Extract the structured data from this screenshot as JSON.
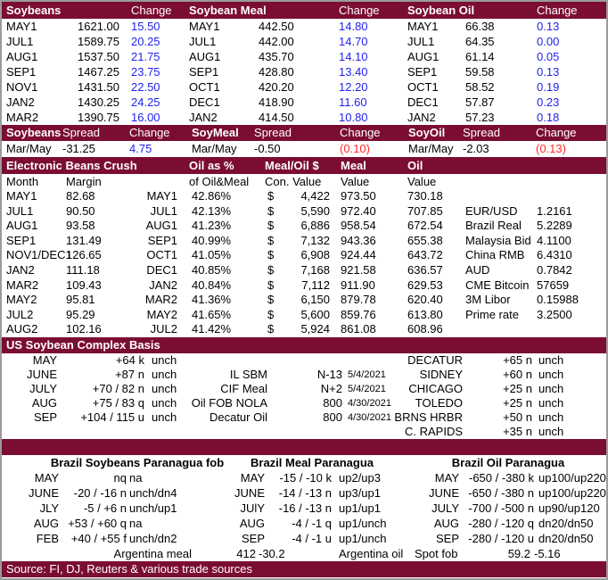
{
  "theme": {
    "maroon": "#7b0d33",
    "change_blue": "#2222ee",
    "change_red": "#ff2a2a"
  },
  "quote_header": {
    "g1": "Soybeans",
    "g2": "Soybean Meal",
    "g3": "Soybean Oil",
    "change": "Change"
  },
  "quote_rows": [
    {
      "m1": "MAY1",
      "v1": "1621.00",
      "c1": "15.50",
      "m2": "MAY1",
      "v2": "442.50",
      "c2": "14.80",
      "m3": "MAY1",
      "v3": "66.38",
      "c3": "0.13"
    },
    {
      "m1": "JUL1",
      "v1": "1589.75",
      "c1": "20.25",
      "m2": "JUL1",
      "v2": "442.00",
      "c2": "14.70",
      "m3": "JUL1",
      "v3": "64.35",
      "c3": "0.00"
    },
    {
      "m1": "AUG1",
      "v1": "1537.50",
      "c1": "21.75",
      "m2": "AUG1",
      "v2": "435.70",
      "c2": "14.10",
      "m3": "AUG1",
      "v3": "61.14",
      "c3": "0.05"
    },
    {
      "m1": "SEP1",
      "v1": "1467.25",
      "c1": "23.75",
      "m2": "SEP1",
      "v2": "428.80",
      "c2": "13.40",
      "m3": "SEP1",
      "v3": "59.58",
      "c3": "0.13"
    },
    {
      "m1": "NOV1",
      "v1": "1431.50",
      "c1": "22.50",
      "m2": "OCT1",
      "v2": "420.20",
      "c2": "12.20",
      "m3": "OCT1",
      "v3": "58.52",
      "c3": "0.19"
    },
    {
      "m1": "JAN2",
      "v1": "1430.25",
      "c1": "24.25",
      "m2": "DEC1",
      "v2": "418.90",
      "c2": "11.60",
      "m3": "DEC1",
      "v3": "57.87",
      "c3": "0.23"
    },
    {
      "m1": "MAR2",
      "v1": "1390.75",
      "c1": "16.00",
      "m2": "JAN2",
      "v2": "414.50",
      "c2": "10.80",
      "m3": "JAN2",
      "v3": "57.23",
      "c3": "0.18"
    }
  ],
  "spread": {
    "header": {
      "g1": "Soybeans",
      "g2": "SoyMeal",
      "g3": "SoyOil",
      "spread": "Spread",
      "change": "Change"
    },
    "row": {
      "m1": "Mar/May",
      "v1": "-31.25",
      "c1": "4.75",
      "cls1": "blue",
      "m2": "Mar/May",
      "v2": "-0.50",
      "c2": "(0.10)",
      "cls2": "red",
      "m3": "Mar/May",
      "v3": "-2.03",
      "c3": "(0.13)",
      "cls3": "red"
    }
  },
  "crush": {
    "title": "Electronic Beans Crush",
    "h_oilpct": "Oil as %",
    "h_mealoil": "Meal/Oil $",
    "h_meal": "Meal",
    "h_oil": "Oil",
    "sh_month": "Month",
    "sh_margin": "Margin",
    "sh_oilpct": "of Oil&Meal",
    "sh_con": "Con. Value",
    "sh_meal_value": "Value",
    "sh_oil_value": "Value",
    "rows": [
      {
        "month": "MAY1",
        "margin": "82.68",
        "c": "MAY1",
        "pct": "42.86%",
        "d": "$",
        "con": "4,422",
        "meal": "973.50",
        "oil": "730.18",
        "fx": "",
        "fxv": ""
      },
      {
        "month": "JUL1",
        "margin": "90.50",
        "c": "JUL1",
        "pct": "42.13%",
        "d": "$",
        "con": "5,590",
        "meal": "972.40",
        "oil": "707.85",
        "fx": "EUR/USD",
        "fxv": "1.2161"
      },
      {
        "month": "AUG1",
        "margin": "93.58",
        "c": "AUG1",
        "pct": "41.23%",
        "d": "$",
        "con": "6,886",
        "meal": "958.54",
        "oil": "672.54",
        "fx": "Brazil Real",
        "fxv": "5.2289"
      },
      {
        "month": "SEP1",
        "margin": "131.49",
        "c": "SEP1",
        "pct": "40.99%",
        "d": "$",
        "con": "7,132",
        "meal": "943.36",
        "oil": "655.38",
        "fx": "Malaysia Bid",
        "fxv": "4.1100"
      },
      {
        "month": "NOV1/DEC1",
        "margin": "126.65",
        "c": "OCT1",
        "pct": "41.05%",
        "d": "$",
        "con": "6,908",
        "meal": "924.44",
        "oil": "643.72",
        "fx": "China RMB",
        "fxv": "6.4310"
      },
      {
        "month": "JAN2",
        "margin": "111.18",
        "c": "DEC1",
        "pct": "40.85%",
        "d": "$",
        "con": "7,168",
        "meal": "921.58",
        "oil": "636.57",
        "fx": "AUD",
        "fxv": "0.7842"
      },
      {
        "month": "MAR2",
        "margin": "109.43",
        "c": "JAN2",
        "pct": "40.84%",
        "d": "$",
        "con": "7,112",
        "meal": "911.90",
        "oil": "629.53",
        "fx": "CME Bitcoin",
        "fxv": "57659"
      },
      {
        "month": "MAY2",
        "margin": "95.81",
        "c": "MAR2",
        "pct": "41.36%",
        "d": "$",
        "con": "6,150",
        "meal": "879.78",
        "oil": "620.40",
        "fx": "3M Libor",
        "fxv": "0.15988"
      },
      {
        "month": "JUL2",
        "margin": "95.29",
        "c": "MAY2",
        "pct": "41.65%",
        "d": "$",
        "con": "5,600",
        "meal": "859.76",
        "oil": "613.80",
        "fx": "Prime rate",
        "fxv": "3.2500"
      },
      {
        "month": "AUG2",
        "margin": "102.16",
        "c": "JUL2",
        "pct": "41.42%",
        "d": "$",
        "con": "5,924",
        "meal": "861.08",
        "oil": "608.96",
        "fx": "",
        "fxv": ""
      }
    ]
  },
  "basis": {
    "title": "US Soybean Complex Basis",
    "rows": [
      {
        "m": "MAY",
        "v": "+64 k",
        "ch": "unch",
        "ml": "",
        "mv": "",
        "md": "",
        "rl": "DECATUR",
        "rv": "+65 n",
        "rch": "unch"
      },
      {
        "m": "JUNE",
        "v": "+87 n",
        "ch": "unch",
        "ml": "IL SBM",
        "mv": "N-13",
        "md": "5/4/2021",
        "rl": "SIDNEY",
        "rv": "+60 n",
        "rch": "unch"
      },
      {
        "m": "JULY",
        "v": "+70 / 82 n",
        "ch": "unch",
        "ml": "CIF Meal",
        "mv": "N+2",
        "md": "5/4/2021",
        "rl": "CHICAGO",
        "rv": "+25 n",
        "rch": "unch"
      },
      {
        "m": "AUG",
        "v": "+75 / 83 q",
        "ch": "unch",
        "ml": "Oil FOB NOLA",
        "mv": "800",
        "md": "4/30/2021",
        "rl": "TOLEDO",
        "rv": "+25 n",
        "rch": "unch"
      },
      {
        "m": "SEP",
        "v": "+104 / 115 u",
        "ch": "unch",
        "ml": "Decatur Oil",
        "mv": "800",
        "md": "4/30/2021",
        "rl": "BRNS HRBR",
        "rv": "+50 n",
        "rch": "unch"
      },
      {
        "m": "",
        "v": "",
        "ch": "",
        "ml": "",
        "mv": "",
        "md": "",
        "rl": "C. RAPIDS",
        "rv": "+35 n",
        "rch": "unch"
      }
    ]
  },
  "brazil": {
    "t1": "Brazil Soybeans Paranagua fob",
    "t2": "Brazil Meal Paranagua",
    "t3": "Brazil Oil Paranagua",
    "rows": [
      {
        "m1": "MAY",
        "v1": "nq",
        "c1": "na",
        "m2": "MAY",
        "v2": "-15 / -10 k",
        "c2": "up2/up3",
        "m3": "MAY",
        "v3": "-650 / -380 k",
        "c3": "up100/up220"
      },
      {
        "m1": "JUNE",
        "v1": "-20 / -16 n",
        "c1": "unch/dn4",
        "m2": "JUNE",
        "v2": "-14 / -13 n",
        "c2": "up3/up1",
        "m3": "JUNE",
        "v3": "-650 / -380 n",
        "c3": "up100/up220"
      },
      {
        "m1": "JLY",
        "v1": "-5 / +6 n",
        "c1": "unch/up1",
        "m2": "JUlY",
        "v2": "-16 / -13 n",
        "c2": "up1/up1",
        "m3": "JULY",
        "v3": "-700 / -500 n",
        "c3": "up90/up120"
      },
      {
        "m1": "AUG",
        "v1": "+53 / +60 q",
        "c1": "na",
        "m2": "AUG",
        "v2": "-4 / -1 q",
        "c2": "up1/unch",
        "m3": "AUG",
        "v3": "-280 / -120 q",
        "c3": "dn20/dn50"
      },
      {
        "m1": "FEB",
        "v1": "+40 / +55 f",
        "c1": "unch/dn2",
        "m2": "SEP",
        "v2": "-4 / -1 u",
        "c2": "up1/unch",
        "m3": "SEP",
        "v3": "-280 / -120 u",
        "c3": "dn20/dn50"
      }
    ],
    "footer": {
      "arg_meal": "Argentina meal",
      "arg_meal_v": "412",
      "arg_meal_c": "-30.2",
      "arg_oil": "Argentina oil",
      "spot": "Spot fob",
      "spot_v": "59.2",
      "spot_c": "-5.16"
    }
  },
  "source_bar": "Source: FI, DJ, Reuters & various trade sources"
}
